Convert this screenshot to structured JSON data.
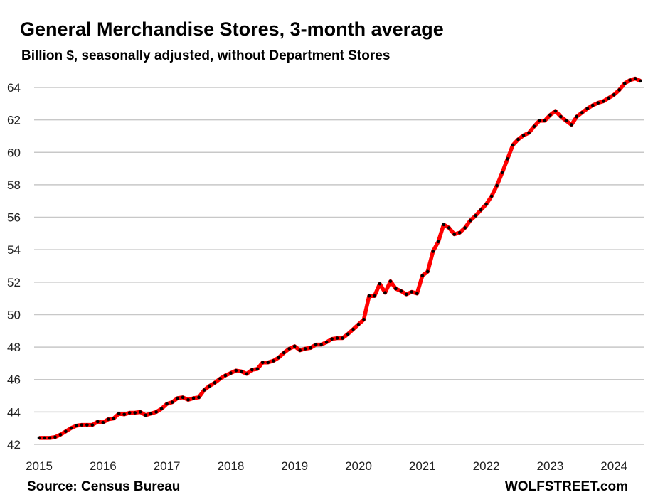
{
  "chart_data": {
    "type": "line",
    "title": "General Merchandise Stores, 3-month average",
    "subtitle": "Billion $, seasonally adjusted, without Department Stores",
    "xlabel": "",
    "ylabel": "",
    "ylim": [
      42,
      64
    ],
    "xlim": [
      2015,
      2024.5
    ],
    "yticks": [
      "42",
      "44",
      "46",
      "48",
      "50",
      "52",
      "54",
      "56",
      "58",
      "60",
      "62",
      "64"
    ],
    "xticks": [
      "2015",
      "2016",
      "2017",
      "2018",
      "2019",
      "2020",
      "2021",
      "2022",
      "2023",
      "2024"
    ],
    "grid": true,
    "start": "2015-01",
    "frequency": "monthly",
    "series": [
      {
        "name": "General Merchandise Stores",
        "color": "#ff0000",
        "marker_color": "#000000",
        "values": [
          42.4,
          42.4,
          42.4,
          42.45,
          42.6,
          42.8,
          43.0,
          43.15,
          43.2,
          43.2,
          43.2,
          43.4,
          43.35,
          43.55,
          43.6,
          43.9,
          43.85,
          43.95,
          43.95,
          44.0,
          43.8,
          43.9,
          44.0,
          44.2,
          44.5,
          44.6,
          44.85,
          44.9,
          44.75,
          44.85,
          44.9,
          45.35,
          45.6,
          45.8,
          46.05,
          46.25,
          46.4,
          46.55,
          46.5,
          46.35,
          46.6,
          46.65,
          47.05,
          47.05,
          47.15,
          47.35,
          47.65,
          47.9,
          48.05,
          47.8,
          47.9,
          47.95,
          48.15,
          48.15,
          48.3,
          48.5,
          48.55,
          48.55,
          48.8,
          49.1,
          49.4,
          49.7,
          51.15,
          51.15,
          51.9,
          51.35,
          52.05,
          51.6,
          51.45,
          51.25,
          51.4,
          51.3,
          52.4,
          52.65,
          53.9,
          54.5,
          55.55,
          55.35,
          54.95,
          55.05,
          55.35,
          55.8,
          56.1,
          56.45,
          56.8,
          57.3,
          57.95,
          58.75,
          59.6,
          60.45,
          60.8,
          61.05,
          61.2,
          61.6,
          61.95,
          61.95,
          62.3,
          62.55,
          62.2,
          61.95,
          61.7,
          62.2,
          62.45,
          62.7,
          62.9,
          63.05,
          63.15,
          63.35,
          63.55,
          63.85,
          64.25,
          64.45,
          64.55,
          64.4
        ]
      }
    ],
    "source": "Source: Census Bureau",
    "brand": "WOLFSTREET.com"
  }
}
